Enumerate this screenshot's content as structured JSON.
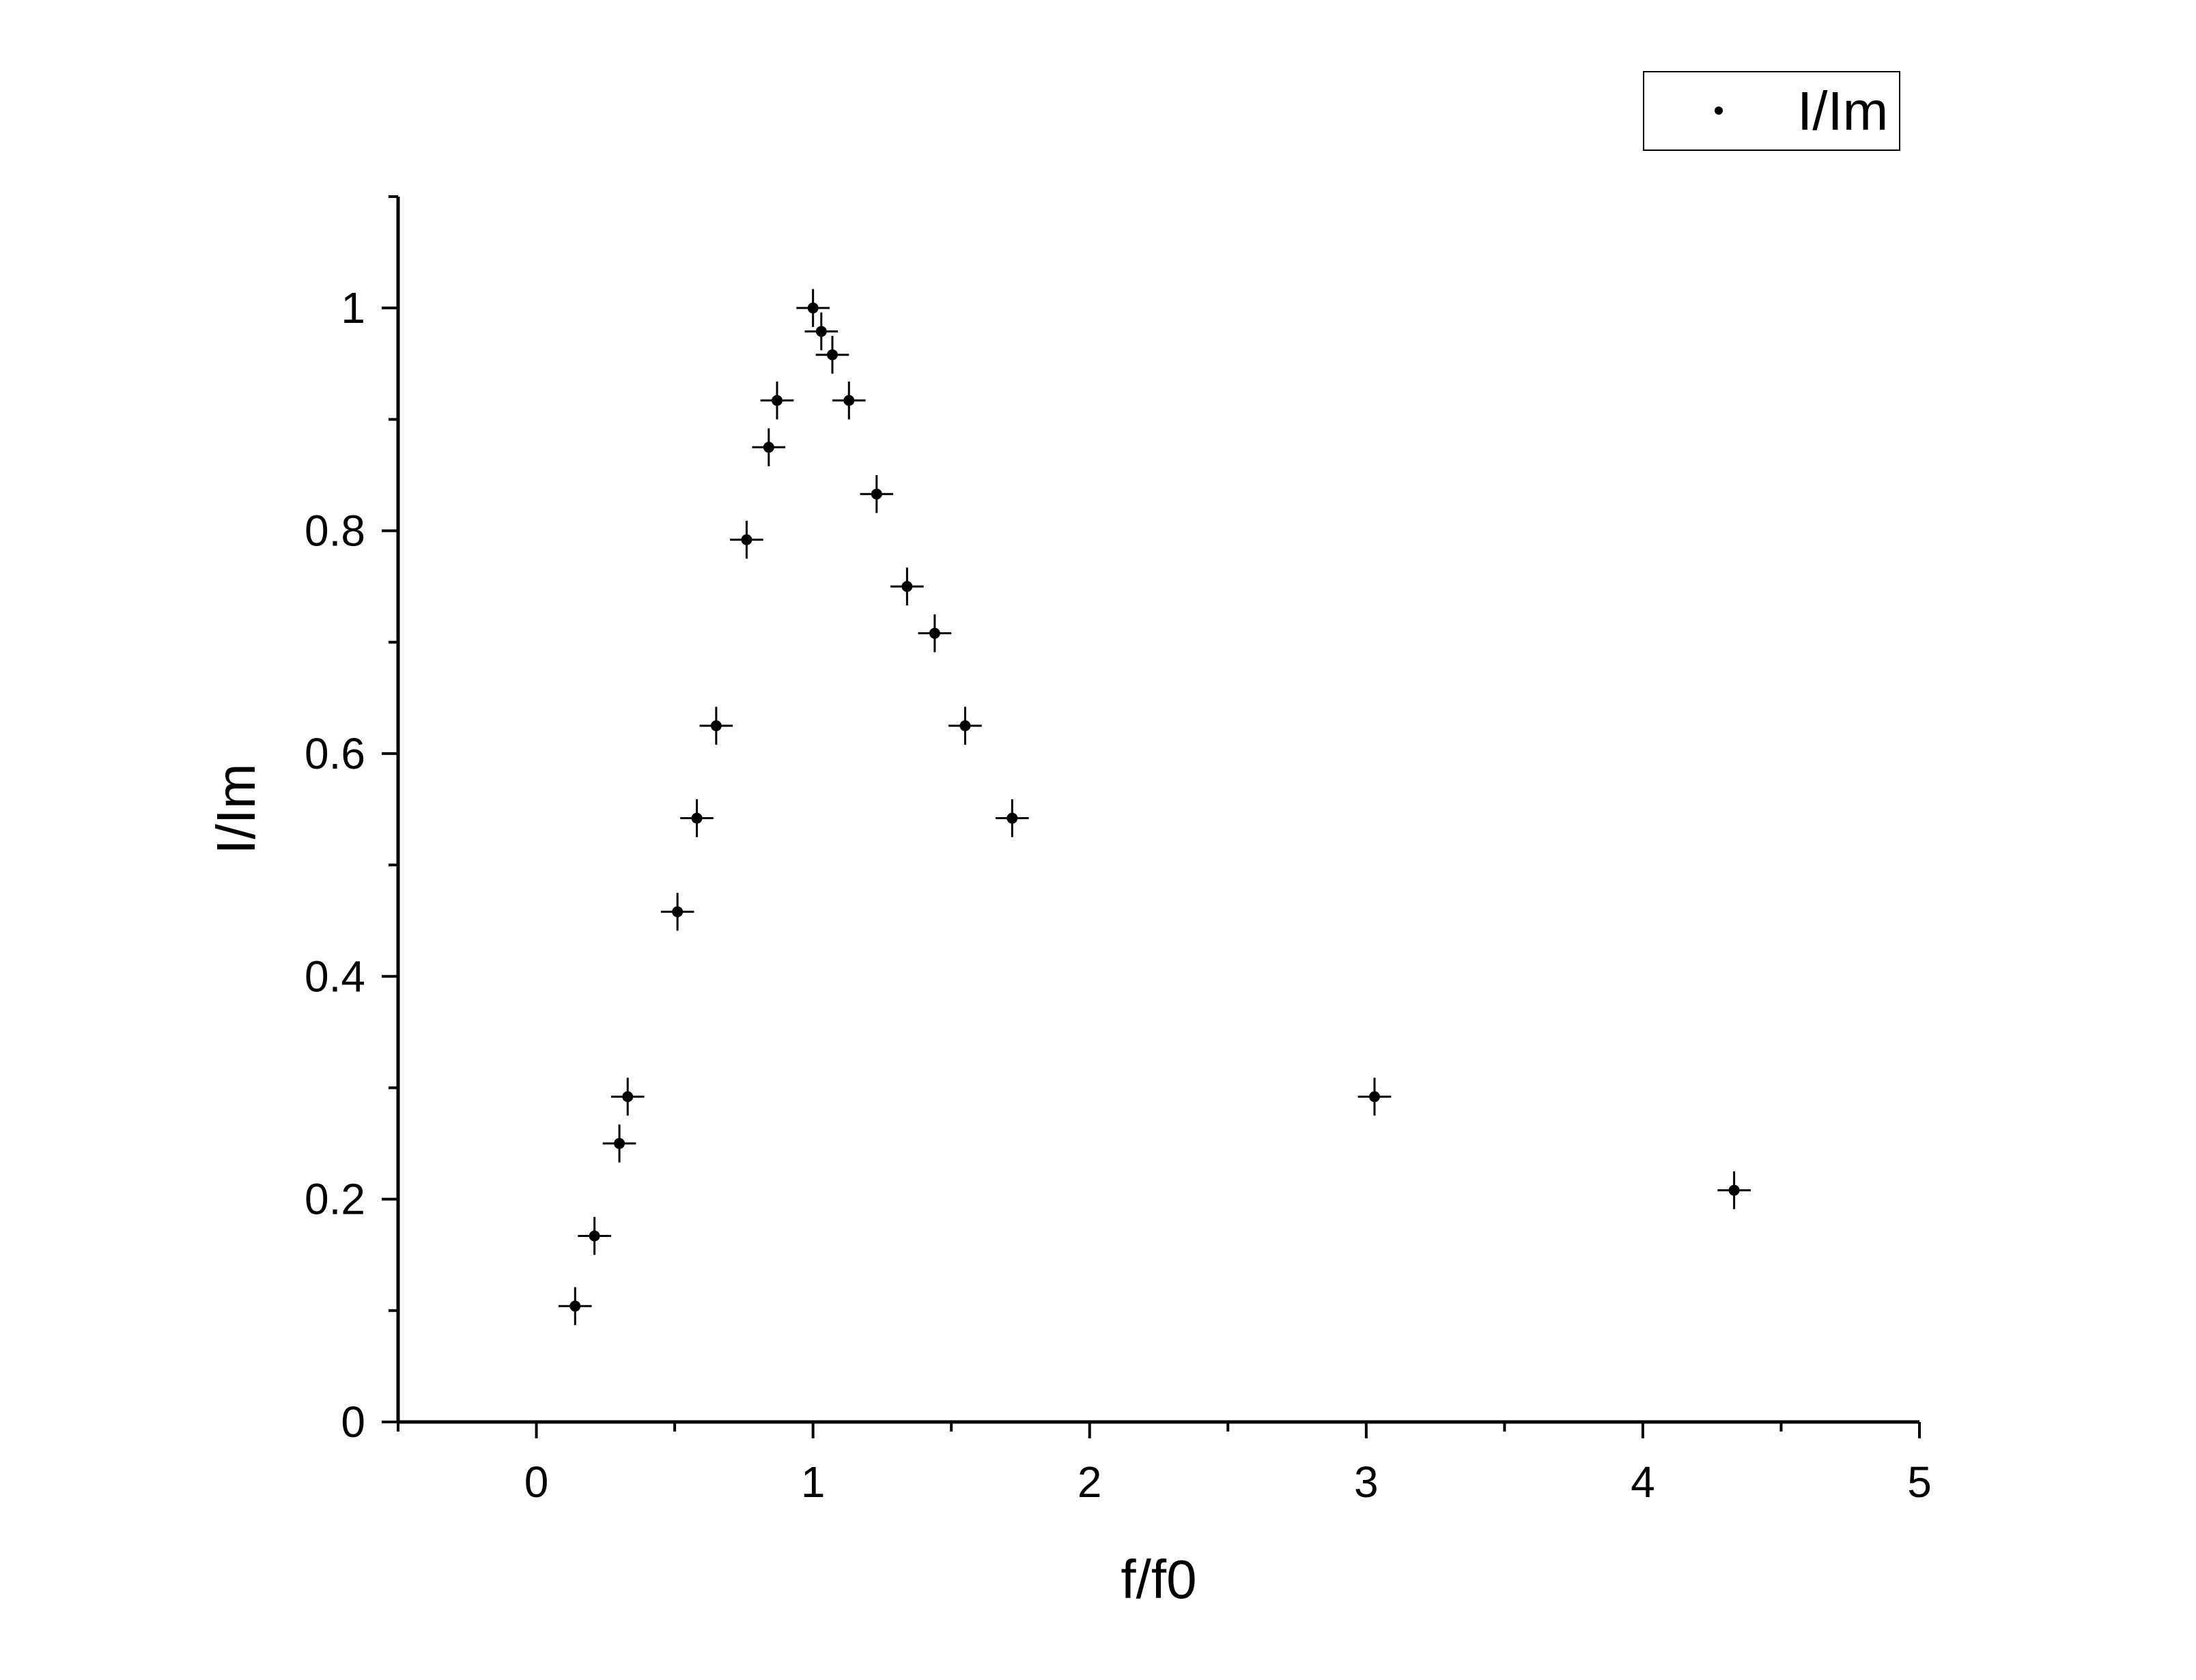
{
  "chart_data": {
    "type": "scatter",
    "xlabel": "f/f0",
    "ylabel": "I/Im",
    "xlim": [
      -0.5,
      5
    ],
    "ylim": [
      0,
      1.1
    ],
    "x_ticks": [
      "0",
      "1",
      "2",
      "3",
      "4",
      "5"
    ],
    "y_ticks": [
      "0",
      "0.2",
      "0.4",
      "0.6",
      "0.8",
      "1"
    ],
    "grid": false,
    "legend_position": "top-right",
    "series": [
      {
        "name": "I/Im",
        "color": "#000000",
        "marker": "dot",
        "error_bars": {
          "x": 0.06,
          "y": 0.017
        },
        "points": [
          {
            "x": 0.14,
            "y": 0.104
          },
          {
            "x": 0.21,
            "y": 0.167
          },
          {
            "x": 0.3,
            "y": 0.25
          },
          {
            "x": 0.33,
            "y": 0.292
          },
          {
            "x": 0.51,
            "y": 0.458
          },
          {
            "x": 0.58,
            "y": 0.542
          },
          {
            "x": 0.65,
            "y": 0.625
          },
          {
            "x": 0.76,
            "y": 0.792
          },
          {
            "x": 0.84,
            "y": 0.875
          },
          {
            "x": 0.87,
            "y": 0.917
          },
          {
            "x": 1.0,
            "y": 1.0
          },
          {
            "x": 1.03,
            "y": 0.979
          },
          {
            "x": 1.07,
            "y": 0.958
          },
          {
            "x": 1.13,
            "y": 0.917
          },
          {
            "x": 1.23,
            "y": 0.833
          },
          {
            "x": 1.34,
            "y": 0.75
          },
          {
            "x": 1.44,
            "y": 0.708
          },
          {
            "x": 1.55,
            "y": 0.625
          },
          {
            "x": 1.72,
            "y": 0.542
          },
          {
            "x": 3.03,
            "y": 0.292
          },
          {
            "x": 4.33,
            "y": 0.208
          }
        ]
      }
    ]
  }
}
